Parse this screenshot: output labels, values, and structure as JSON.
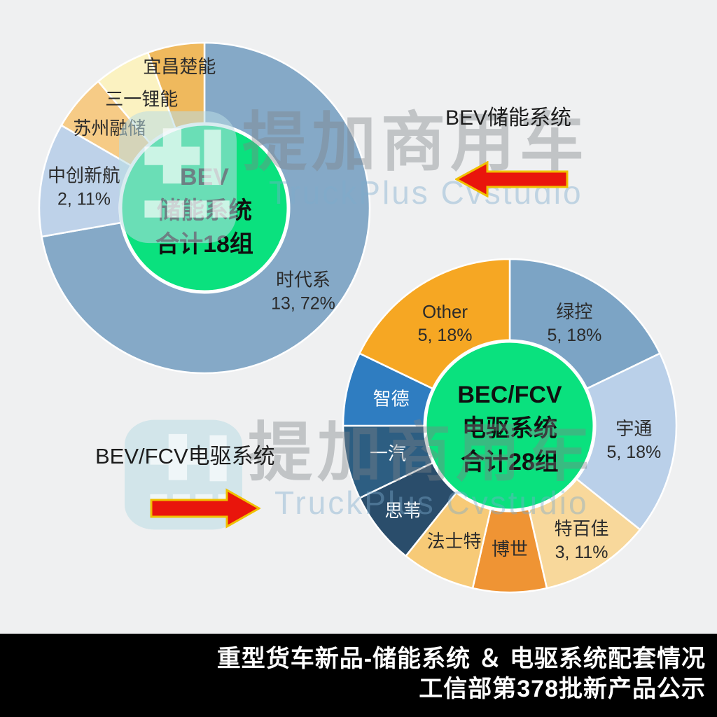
{
  "page": {
    "background": "#EFF0F1",
    "footer_background": "#000000"
  },
  "watermark": {
    "brand_cn": "提加商用车",
    "brand_en": "TruckPlus Cvstudio"
  },
  "annotations": {
    "storage_label": "BEV储能系统",
    "edrive_label": "BEV/FCV电驱系统"
  },
  "footer": {
    "line1": "重型货车新品-储能系统 ＆ 电驱系统配套情况",
    "line2": "工信部第378批新产品公示"
  },
  "arrow": {
    "fill": "#E9150C",
    "border": "#F0C000"
  },
  "chart_data": [
    {
      "type": "pie",
      "subtype": "donut",
      "title": "BEV储能系统",
      "center_lines": [
        "BEV",
        "储能系统",
        "合计18组"
      ],
      "total_units": 18,
      "unit": "组",
      "center_color": "#0AE17E",
      "slices": [
        {
          "label": "时代系",
          "value": 13,
          "pct": 72,
          "value_label": "13, 72%",
          "color": "#85A9C7",
          "text_color": "#2B2B2B",
          "label_r": 0.78
        },
        {
          "label": "中创新航",
          "value": 2,
          "pct": 11,
          "value_label": "2, 11%",
          "color": "#BED2E9",
          "text_color": "#2B2B2B",
          "label_r": 0.74
        },
        {
          "label": "苏州融储",
          "value": 1,
          "pct": 6,
          "value_label": "",
          "color": "#F6CB86",
          "text_color": "#2B2B2B",
          "label_r": 0.75
        },
        {
          "label": "三一锂能",
          "value": 1,
          "pct": 6,
          "value_label": "",
          "color": "#FBF2C1",
          "text_color": "#2B2B2B",
          "label_r": 0.76
        },
        {
          "label": "宜昌楚能",
          "value": 1,
          "pct": 6,
          "value_label": "",
          "color": "#EFB95D",
          "text_color": "#2B2B2B",
          "label_r": 0.87
        }
      ]
    },
    {
      "type": "pie",
      "subtype": "donut",
      "title": "BEV/FCV电驱系统",
      "center_lines": [
        "BEC/FCV",
        "电驱系统",
        "合计28组"
      ],
      "total_units": 28,
      "unit": "组",
      "center_color": "#0AE17E",
      "slices": [
        {
          "label": "绿控",
          "value": 5,
          "pct": 18,
          "value_label": "5, 18%",
          "color": "#7CA4C5",
          "text_color": "#2B2B2B",
          "label_r": 0.73
        },
        {
          "label": "宇通",
          "value": 5,
          "pct": 18,
          "value_label": "5, 18%",
          "color": "#BAD0E9",
          "text_color": "#2B2B2B",
          "label_r": 0.75
        },
        {
          "label": "特百佳",
          "value": 3,
          "pct": 11,
          "value_label": "3, 11%",
          "color": "#F8D89B",
          "text_color": "#2B2B2B",
          "label_r": 0.81
        },
        {
          "label": "博世",
          "value": 2,
          "pct": 7,
          "value_label": "",
          "color": "#EF9434",
          "text_color": "#2B2B2B",
          "label_r": 0.74
        },
        {
          "label": "法士特",
          "value": 2,
          "pct": 7,
          "value_label": "",
          "color": "#F7CA77",
          "text_color": "#2B2B2B",
          "label_r": 0.77
        },
        {
          "label": "思苇",
          "value": 2,
          "pct": 7,
          "value_label": "",
          "color": "#2A4D6B",
          "text_color": "#FFFFFF",
          "label_r": 0.82
        },
        {
          "label": "一汽",
          "value": 2,
          "pct": 7,
          "value_label": "",
          "color": "#2D5E82",
          "text_color": "#FFFFFF",
          "label_r": 0.75
        },
        {
          "label": "智德",
          "value": 2,
          "pct": 7,
          "value_label": "",
          "color": "#2F7DC1",
          "text_color": "#FFFFFF",
          "label_r": 0.73
        },
        {
          "label": "Other",
          "value": 5,
          "pct": 18,
          "value_label": "5, 18%",
          "color": "#F6A723",
          "text_color": "#2B2B2B",
          "label_r": 0.73
        }
      ]
    }
  ]
}
